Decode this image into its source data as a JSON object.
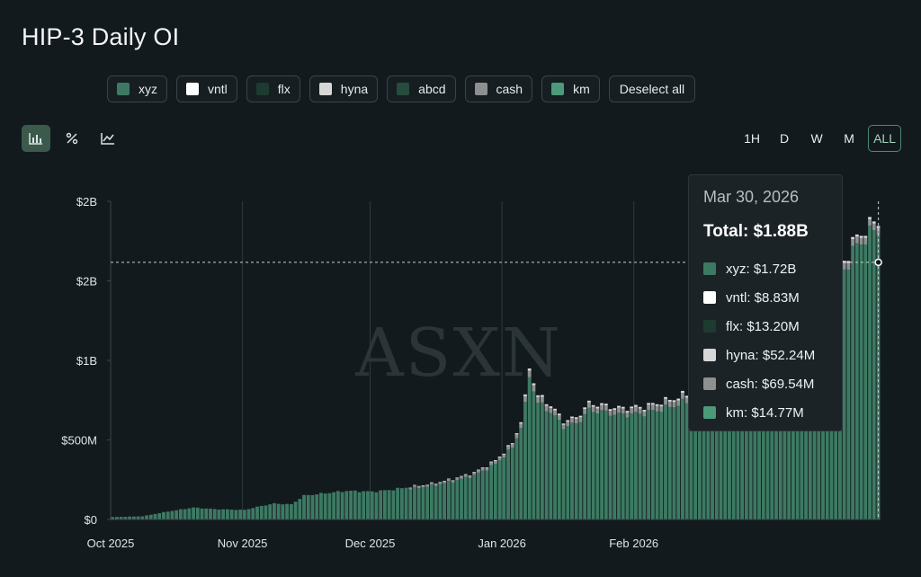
{
  "title": "HIP-3 Daily OI",
  "legend": [
    {
      "label": "xyz",
      "color": "#3d7a63"
    },
    {
      "label": "vntl",
      "color": "#ffffff"
    },
    {
      "label": "flx",
      "color": "#1d3b30"
    },
    {
      "label": "hyna",
      "color": "#d7d7d7"
    },
    {
      "label": "abcd",
      "color": "#244d3d"
    },
    {
      "label": "cash",
      "color": "#8d8f90"
    },
    {
      "label": "km",
      "color": "#4c9a7a"
    }
  ],
  "deselect_label": "Deselect all",
  "tools": [
    {
      "name": "bar-chart-icon",
      "glyph": "▐▌"
    },
    {
      "name": "percent-icon",
      "glyph": "%"
    },
    {
      "name": "line-chart-icon",
      "glyph": "↗"
    }
  ],
  "ranges": [
    "1H",
    "D",
    "W",
    "M",
    "ALL"
  ],
  "active_range": "ALL",
  "watermark": "ASXN",
  "tooltip": {
    "date": "Mar 30, 2026",
    "total": "Total: $1.88B",
    "rows": [
      {
        "text": "xyz: $1.72B",
        "color": "#3d7a63"
      },
      {
        "text": "vntl: $8.83M",
        "color": "#ffffff"
      },
      {
        "text": "flx: $13.20M",
        "color": "#1d3b30"
      },
      {
        "text": "hyna: $52.24M",
        "color": "#d7d7d7"
      },
      {
        "text": "cash: $69.54M",
        "color": "#8d8f90"
      },
      {
        "text": "km: $14.77M",
        "color": "#4c9a7a"
      }
    ]
  },
  "chart_data": {
    "type": "bar",
    "stacked": true,
    "title": "HIP-3 Daily OI",
    "y_tick_labels": [
      "$0",
      "$500M",
      "$1B",
      "$2B",
      "$2B"
    ],
    "y_tick_values": [
      0,
      500,
      1000,
      1500,
      2000
    ],
    "ylim": [
      0,
      2000
    ],
    "x_tick_labels": [
      "Oct 2025",
      "Nov 2025",
      "Dec 2025",
      "Jan 2026",
      "Feb 2026"
    ],
    "x_tick_dates": [
      "2025-10-01",
      "2025-11-01",
      "2025-12-01",
      "2026-01-01",
      "2026-02-01"
    ],
    "date_start": "2025-10-01",
    "date_end": "2026-03-30",
    "grid": "vertical at month starts",
    "hover_date": "2026-03-30",
    "hover_total_musd": 1880,
    "curve_points": [
      [
        "2025-10-01",
        15
      ],
      [
        "2025-10-08",
        20
      ],
      [
        "2025-10-14",
        50
      ],
      [
        "2025-10-20",
        75
      ],
      [
        "2025-10-25",
        65
      ],
      [
        "2025-11-01",
        60
      ],
      [
        "2025-11-05",
        85
      ],
      [
        "2025-11-08",
        100
      ],
      [
        "2025-11-12",
        95
      ],
      [
        "2025-11-15",
        150
      ],
      [
        "2025-11-20",
        165
      ],
      [
        "2025-11-25",
        180
      ],
      [
        "2025-12-01",
        175
      ],
      [
        "2025-12-05",
        185
      ],
      [
        "2025-12-10",
        205
      ],
      [
        "2025-12-15",
        225
      ],
      [
        "2025-12-20",
        255
      ],
      [
        "2025-12-25",
        295
      ],
      [
        "2025-12-30",
        370
      ],
      [
        "2026-01-03",
        480
      ],
      [
        "2026-01-05",
        620
      ],
      [
        "2026-01-06",
        760
      ],
      [
        "2026-01-07",
        960
      ],
      [
        "2026-01-09",
        780
      ],
      [
        "2026-01-12",
        720
      ],
      [
        "2026-01-15",
        620
      ],
      [
        "2026-01-18",
        640
      ],
      [
        "2026-01-21",
        730
      ],
      [
        "2026-01-24",
        720
      ],
      [
        "2026-01-28",
        700
      ],
      [
        "2026-02-03",
        710
      ],
      [
        "2026-02-10",
        760
      ],
      [
        "2026-02-17",
        830
      ],
      [
        "2026-02-24",
        900
      ],
      [
        "2026-03-03",
        1000
      ],
      [
        "2026-03-10",
        1150
      ],
      [
        "2026-03-17",
        1400
      ],
      [
        "2026-03-19",
        1460
      ],
      [
        "2026-03-20",
        1350
      ],
      [
        "2026-03-22",
        1620
      ],
      [
        "2026-03-24",
        1740
      ],
      [
        "2026-03-26",
        1800
      ],
      [
        "2026-03-28",
        1850
      ],
      [
        "2026-03-30",
        1880
      ]
    ]
  }
}
